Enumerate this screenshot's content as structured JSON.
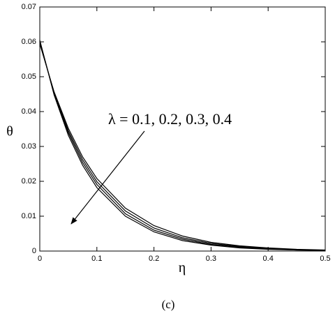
{
  "chart_data": {
    "type": "line",
    "x_label": "η",
    "y_label": "θ",
    "annotation": "λ = 0.1, 0.2, 0.3, 0.4",
    "caption": "(c)",
    "x": [
      0,
      0.025,
      0.05,
      0.075,
      0.1,
      0.15,
      0.2,
      0.25,
      0.3,
      0.35,
      0.4,
      0.45,
      0.5
    ],
    "series": [
      {
        "color": "#000000",
        "values": [
          0.0605,
          0.0448,
          0.0332,
          0.0246,
          0.0182,
          0.01,
          0.0055,
          0.003,
          0.0017,
          0.0009,
          0.0005,
          0.0003,
          0.0002
        ]
      },
      {
        "color": "#000000",
        "values": [
          0.0602,
          0.0452,
          0.0339,
          0.0254,
          0.0191,
          0.0107,
          0.006,
          0.0034,
          0.0019,
          0.0011,
          0.0006,
          0.0003,
          0.0002
        ]
      },
      {
        "color": "#000000",
        "values": [
          0.0598,
          0.0454,
          0.0345,
          0.0262,
          0.0199,
          0.0115,
          0.0066,
          0.0038,
          0.0022,
          0.0013,
          0.0007,
          0.0004,
          0.0002
        ]
      },
      {
        "color": "#000000",
        "values": [
          0.0594,
          0.0457,
          0.0352,
          0.027,
          0.0208,
          0.0123,
          0.0073,
          0.0043,
          0.0025,
          0.0015,
          0.0009,
          0.0005,
          0.0003
        ]
      }
    ],
    "xlim": [
      0,
      0.5
    ],
    "xticks": [
      0,
      0.1,
      0.2,
      0.3,
      0.4,
      0.5
    ],
    "ylim": [
      0,
      0.07
    ],
    "yticks": [
      0,
      0.01,
      0.02,
      0.03,
      0.04,
      0.05,
      0.06,
      0.07
    ]
  }
}
